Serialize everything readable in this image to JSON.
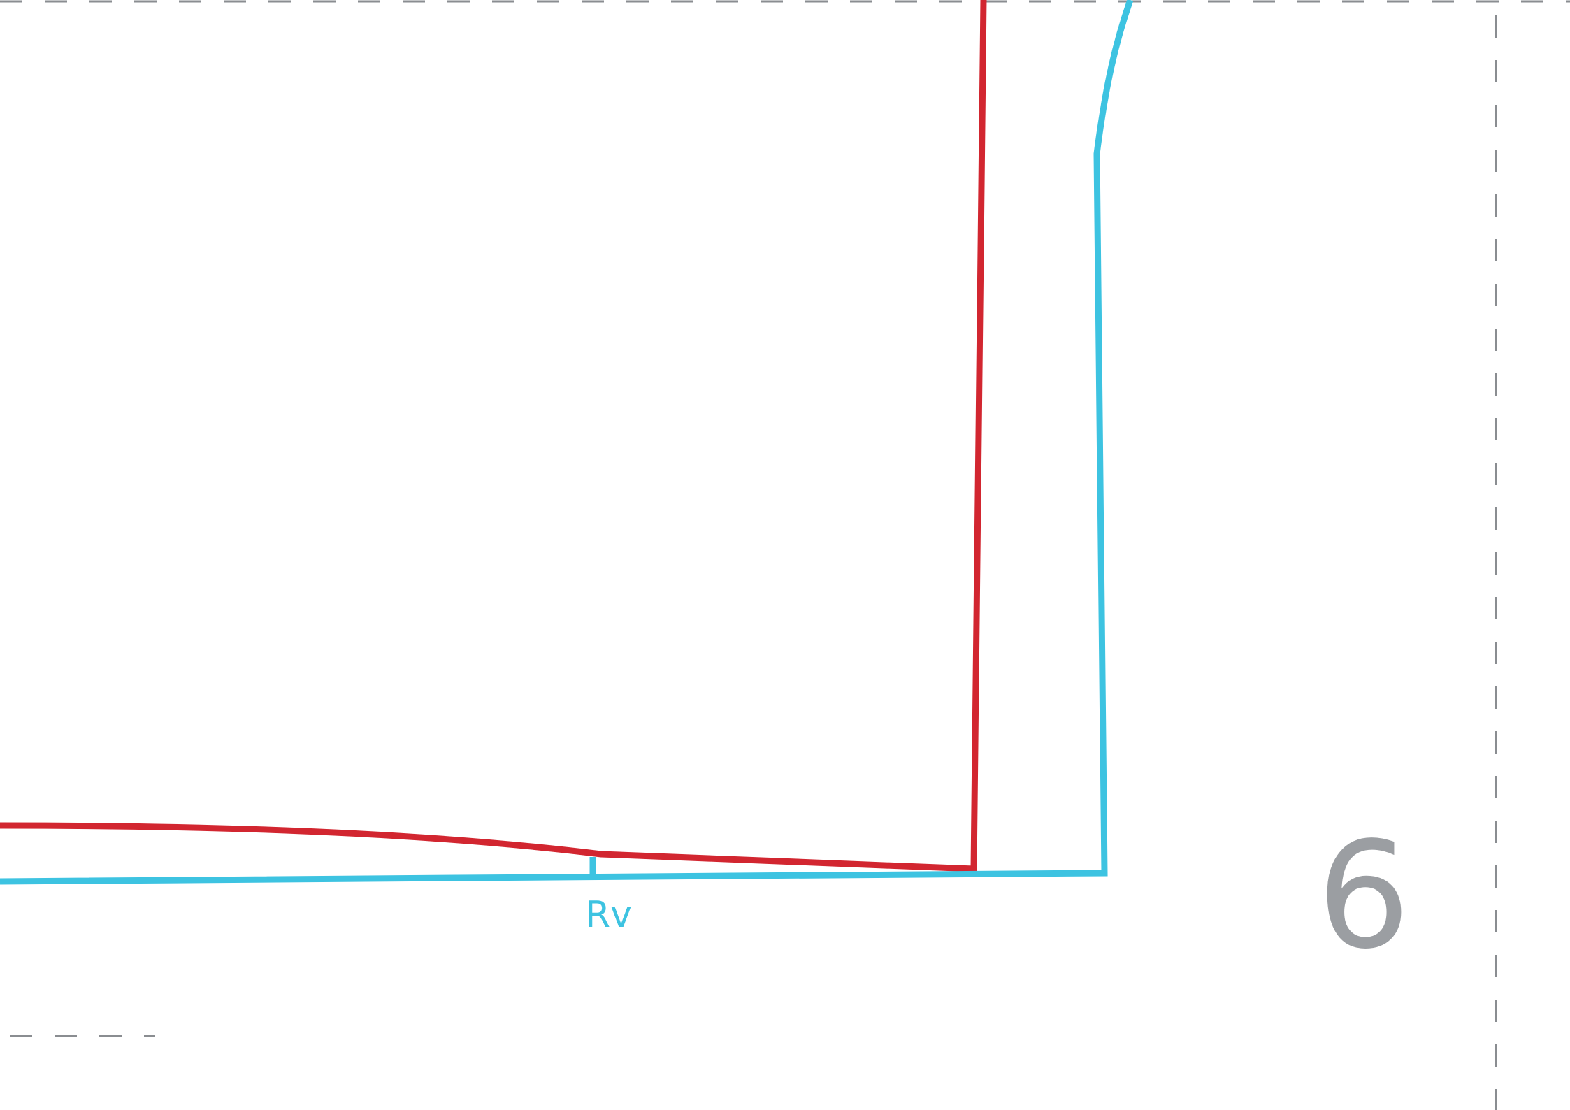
{
  "pattern": {
    "piece_label": "Rv",
    "page_number": "6",
    "colors": {
      "trim_line": "#8a8d91",
      "red_line": "#d22630",
      "blue_line": "#3dc3e1",
      "page_number": "#9b9ea2"
    }
  }
}
